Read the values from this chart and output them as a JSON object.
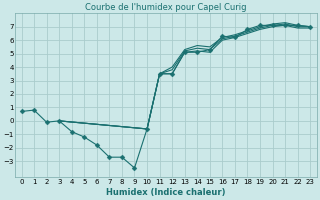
{
  "title": "Courbe de l'humidex pour Capel Curig",
  "xlabel": "Humidex (Indice chaleur)",
  "ylabel": "",
  "xlim": [
    -0.5,
    23.5
  ],
  "ylim": [
    -4.2,
    8.0
  ],
  "yticks": [
    -3,
    -2,
    -1,
    0,
    1,
    2,
    3,
    4,
    5,
    6,
    7
  ],
  "xticks": [
    0,
    1,
    2,
    3,
    4,
    5,
    6,
    7,
    8,
    9,
    10,
    11,
    12,
    13,
    14,
    15,
    16,
    17,
    18,
    19,
    20,
    21,
    22,
    23
  ],
  "bg_color": "#cce8e8",
  "grid_color": "#aacccc",
  "line_color": "#1a7070",
  "lines": [
    {
      "x": [
        0,
        1,
        2,
        3,
        4,
        5,
        6,
        7,
        8,
        9,
        10,
        11,
        12,
        13,
        14,
        15,
        16,
        17,
        18,
        19,
        20,
        21,
        22,
        23
      ],
      "y": [
        0.7,
        0.8,
        -0.1,
        0.0,
        -0.8,
        -1.2,
        -1.8,
        -2.7,
        -2.7,
        -3.5,
        -0.6,
        3.5,
        3.5,
        5.1,
        5.1,
        5.3,
        6.3,
        6.2,
        6.8,
        7.1,
        7.1,
        7.1,
        7.1,
        7.0
      ],
      "marker": true
    },
    {
      "x": [
        3,
        10,
        11,
        12,
        13,
        14,
        15,
        16,
        17,
        18,
        19,
        20,
        21,
        22,
        23
      ],
      "y": [
        0.0,
        -0.6,
        3.5,
        3.5,
        5.1,
        5.2,
        5.1,
        6.0,
        6.2,
        6.5,
        6.8,
        7.0,
        7.1,
        6.9,
        6.9
      ],
      "marker": false
    },
    {
      "x": [
        3,
        10,
        11,
        12,
        13,
        14,
        15,
        16,
        17,
        18,
        19,
        20,
        21,
        22,
        23
      ],
      "y": [
        0.0,
        -0.6,
        3.5,
        3.8,
        5.2,
        5.4,
        5.3,
        6.1,
        6.3,
        6.6,
        6.9,
        7.1,
        7.2,
        7.0,
        7.0
      ],
      "marker": false
    },
    {
      "x": [
        3,
        10,
        11,
        12,
        13,
        14,
        15,
        16,
        17,
        18,
        19,
        20,
        21,
        22,
        23
      ],
      "y": [
        0.0,
        -0.6,
        3.5,
        4.0,
        5.3,
        5.6,
        5.5,
        6.2,
        6.4,
        6.7,
        7.0,
        7.2,
        7.3,
        7.1,
        7.0
      ],
      "marker": false
    }
  ],
  "title_fontsize": 6,
  "xlabel_fontsize": 6,
  "tick_labelsize": 5,
  "line_width": 0.8,
  "marker_size": 2.5
}
